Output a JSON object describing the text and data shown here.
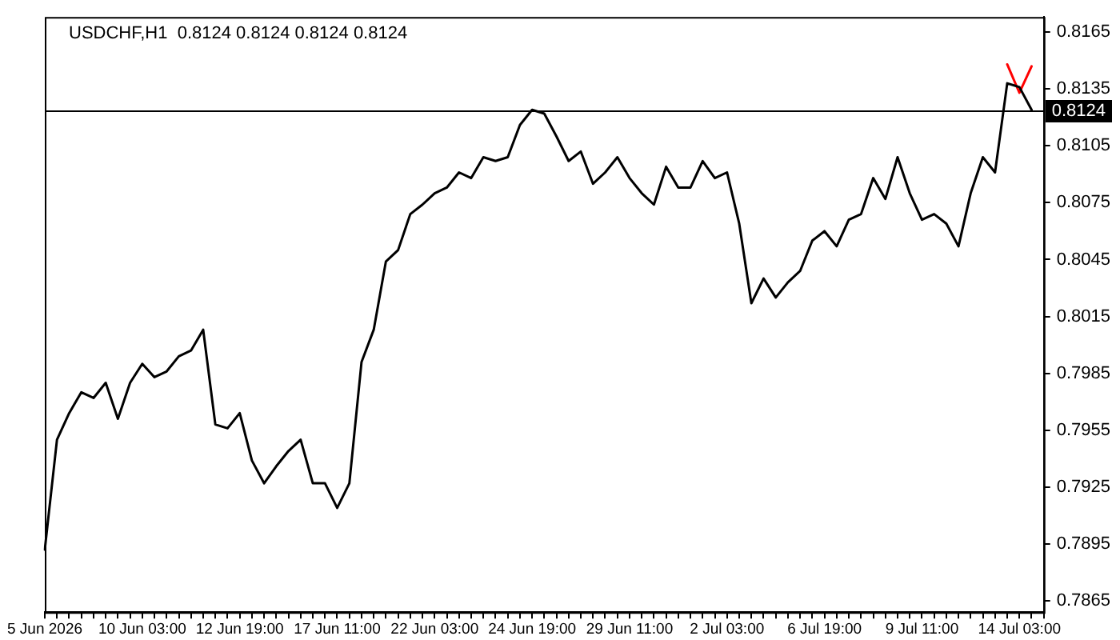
{
  "chart_data": {
    "type": "line",
    "title": "USDCHF,H1  0.8124 0.8124 0.8124 0.8124",
    "categories": [
      "5 Jun 2026",
      null,
      null,
      null,
      null,
      null,
      null,
      null,
      "10 Jun 03:00",
      null,
      null,
      null,
      null,
      null,
      null,
      null,
      "12 Jun 19:00",
      null,
      null,
      null,
      null,
      null,
      null,
      null,
      "17 Jun 11:00",
      null,
      null,
      null,
      null,
      null,
      null,
      null,
      "22 Jun 03:00",
      null,
      null,
      null,
      null,
      null,
      null,
      null,
      "24 Jun 19:00",
      null,
      null,
      null,
      null,
      null,
      null,
      null,
      "29 Jun 11:00",
      null,
      null,
      null,
      null,
      null,
      null,
      null,
      "2 Jul 03:00",
      null,
      null,
      null,
      null,
      null,
      null,
      null,
      "6 Jul 19:00",
      null,
      null,
      null,
      null,
      null,
      null,
      null,
      "9 Jul 11:00",
      null,
      null,
      null,
      null,
      null,
      null,
      null,
      "14 Jul 03:00",
      null,
      null
    ],
    "series": [
      {
        "color": "#000000",
        "values": [
          0.7892,
          0.795,
          0.7964,
          0.7975,
          0.7972,
          0.798,
          0.7961,
          0.798,
          0.799,
          0.7983,
          0.7986,
          0.7994,
          0.7997,
          0.8008,
          0.7958,
          0.7956,
          0.7964,
          0.7939,
          0.7927,
          0.7936,
          0.7944,
          0.795,
          0.7927,
          0.7927,
          0.7914,
          0.7927,
          0.7991,
          0.8008,
          0.8044,
          0.805,
          0.8069,
          0.8074,
          0.808,
          0.8083,
          0.8091,
          0.8088,
          0.8099,
          0.8097,
          0.8099,
          0.8116,
          0.8124,
          0.8122,
          0.811,
          0.8097,
          0.8102,
          0.8085,
          0.8091,
          0.8099,
          0.8088,
          0.808,
          0.8074,
          0.8094,
          0.8083,
          0.8083,
          0.8097,
          0.8088,
          0.8091,
          0.8064,
          0.8022,
          0.8035,
          0.8025,
          0.8033,
          0.8039,
          0.8055,
          0.806,
          0.8052,
          0.8066,
          0.8069,
          0.8088,
          0.8077,
          0.8099,
          0.808,
          0.8066,
          0.8069,
          0.8064,
          0.8052,
          0.808,
          0.8099,
          0.8091,
          0.8138,
          0.8136,
          0.8124,
          null
        ]
      },
      {
        "color": "#ff0000",
        "values": [
          null,
          null,
          null,
          null,
          null,
          null,
          null,
          null,
          null,
          null,
          null,
          null,
          null,
          null,
          null,
          null,
          null,
          null,
          null,
          null,
          null,
          null,
          null,
          null,
          null,
          null,
          null,
          null,
          null,
          null,
          null,
          null,
          null,
          null,
          null,
          null,
          null,
          null,
          null,
          null,
          null,
          null,
          null,
          null,
          null,
          null,
          null,
          null,
          null,
          null,
          null,
          null,
          null,
          null,
          null,
          null,
          null,
          null,
          null,
          null,
          null,
          null,
          null,
          null,
          null,
          null,
          null,
          null,
          null,
          null,
          null,
          null,
          null,
          null,
          null,
          null,
          null,
          null,
          null,
          0.8148,
          0.8133,
          0.8147,
          null
        ]
      }
    ],
    "ylim": [
      0.7859,
      0.8173
    ],
    "yticks": [
      0.7865,
      0.7895,
      0.7925,
      0.7955,
      0.7985,
      0.8015,
      0.8045,
      0.8075,
      0.8105,
      0.8135,
      0.8165
    ],
    "ref_lines": [
      {
        "axis": "y",
        "value": 0.8124,
        "label": "0.8124",
        "color": "#000000"
      }
    ],
    "grid": false,
    "legend": false,
    "marker": "none",
    "line_style": "solid"
  }
}
